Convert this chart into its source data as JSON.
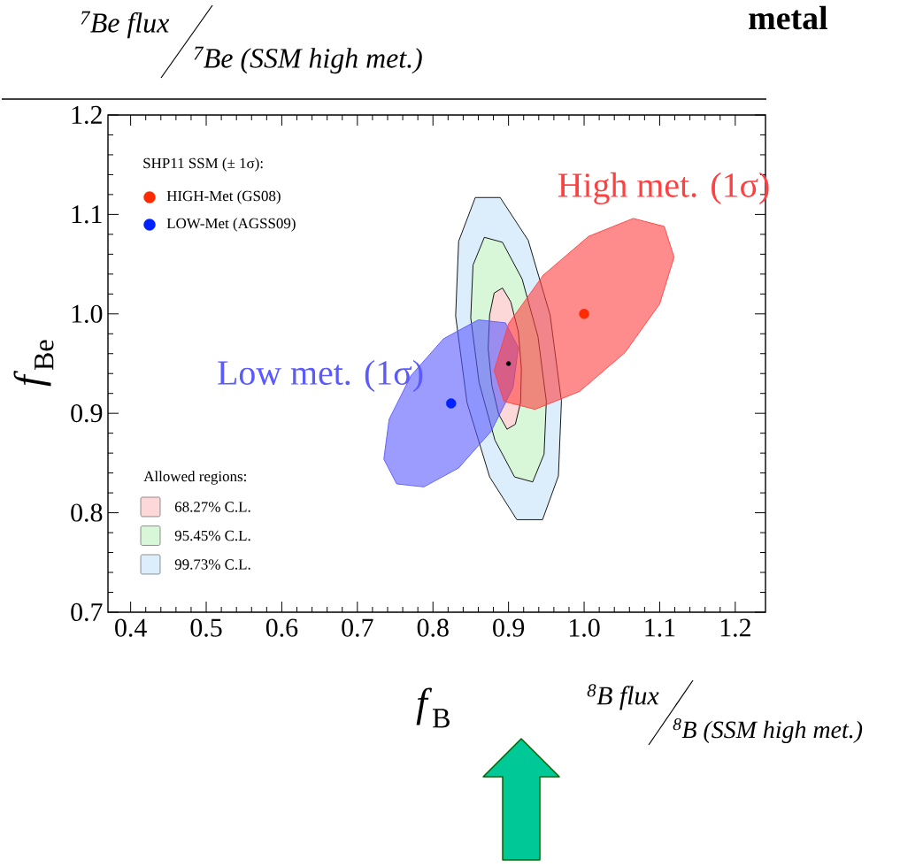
{
  "chart_data": {
    "type": "area",
    "xlabel": "*f*$_{B}$",
    "ylabel": "*f*$_{Be}$",
    "legend_title": "SHP11 SSM (± 1σ):",
    "xlim": [
      0.37,
      1.24
    ],
    "ylim": [
      0.7,
      1.2
    ],
    "xticks": [
      {
        "value": 0.4,
        "label": "0.4"
      },
      {
        "value": 0.5,
        "label": "0.5"
      },
      {
        "value": 0.6,
        "label": "0.6"
      },
      {
        "value": 0.7,
        "label": "0.7"
      },
      {
        "value": 0.8,
        "label": "0.8"
      },
      {
        "value": 0.9,
        "label": "0.9"
      },
      {
        "value": 1.0,
        "label": "1.0"
      },
      {
        "value": 1.1,
        "label": "1.1"
      },
      {
        "value": 1.2,
        "label": "1.2"
      }
    ],
    "yticks": [
      {
        "value": 0.7,
        "label": "0.7"
      },
      {
        "value": 0.8,
        "label": "0.8"
      },
      {
        "value": 0.9,
        "label": "0.9"
      },
      {
        "value": 1.0,
        "label": "1.0"
      },
      {
        "value": 1.1,
        "label": "1.1"
      },
      {
        "value": 1.2,
        "label": "1.2"
      }
    ],
    "legend": "left",
    "series": [
      {
        "name": "99.73% C.L.",
        "color": "#dceefc",
        "x": [
          0.889,
          0.926,
          0.955,
          0.97,
          0.966,
          0.945,
          0.911,
          0.875,
          0.845,
          0.83,
          0.834,
          0.856
        ],
        "values": [
          1.117,
          1.074,
          0.999,
          0.912,
          0.837,
          0.793,
          0.793,
          0.836,
          0.911,
          0.998,
          1.073,
          1.117
        ]
      },
      {
        "name": "95.45% C.L.",
        "color": "#d8f6d8",
        "x": [
          0.892,
          0.918,
          0.939,
          0.95,
          0.947,
          0.932,
          0.908,
          0.882,
          0.861,
          0.85,
          0.853,
          0.868
        ],
        "values": [
          1.072,
          1.035,
          0.977,
          0.912,
          0.859,
          0.831,
          0.836,
          0.873,
          0.931,
          0.996,
          1.049,
          1.077
        ]
      },
      {
        "name": "68.27% C.L.",
        "color": "#fcd8d8",
        "x": [
          0.892,
          0.903,
          0.913,
          0.917,
          0.916,
          0.909,
          0.898,
          0.887,
          0.878,
          0.873,
          0.875,
          0.881
        ],
        "values": [
          1.026,
          1.012,
          0.982,
          0.945,
          0.911,
          0.889,
          0.884,
          0.899,
          0.928,
          0.965,
          0.999,
          1.021
        ]
      },
      {
        "color": "#5a5aff",
        "x": [
          0.896,
          0.913,
          0.906,
          0.877,
          0.834,
          0.788,
          0.752,
          0.735,
          0.742,
          0.771,
          0.814,
          0.86
        ],
        "values": [
          0.991,
          0.966,
          0.926,
          0.882,
          0.845,
          0.826,
          0.829,
          0.854,
          0.894,
          0.938,
          0.975,
          0.994
        ]
      },
      {
        "color": "#ff4040",
        "x": [
          1.106,
          1.119,
          1.1,
          1.054,
          0.994,
          0.935,
          0.894,
          0.881,
          0.9,
          0.946,
          1.006,
          1.065
        ],
        "values": [
          1.088,
          1.057,
          1.01,
          0.961,
          0.922,
          0.904,
          0.912,
          0.943,
          0.99,
          1.039,
          1.078,
          1.096
        ]
      },
      {
        "type": "scatter",
        "marker": "circle",
        "name": "HIGH-Met (GS08)",
        "color": "#ff2a00",
        "x": [
          1.0
        ],
        "values": [
          1.0
        ]
      },
      {
        "type": "scatter",
        "marker": "circle",
        "name": "LOW-Met (AGSS09)",
        "color": "#0022ff",
        "x": [
          0.824
        ],
        "values": [
          0.91
        ]
      },
      {
        "type": "scatter",
        "marker": "circle",
        "color": "#000000",
        "x": [
          0.9
        ],
        "values": [
          0.95
        ]
      }
    ],
    "annotations": [
      "$^{7}$Be flux",
      "$^{7}$Be (SSM  high met.)",
      "$^{8}$B flux",
      "$^{8}$B (SSM  high met.)",
      "metal",
      "Allowed regions:",
      "High met. (1σ)",
      "Low met. (1σ)"
    ]
  }
}
